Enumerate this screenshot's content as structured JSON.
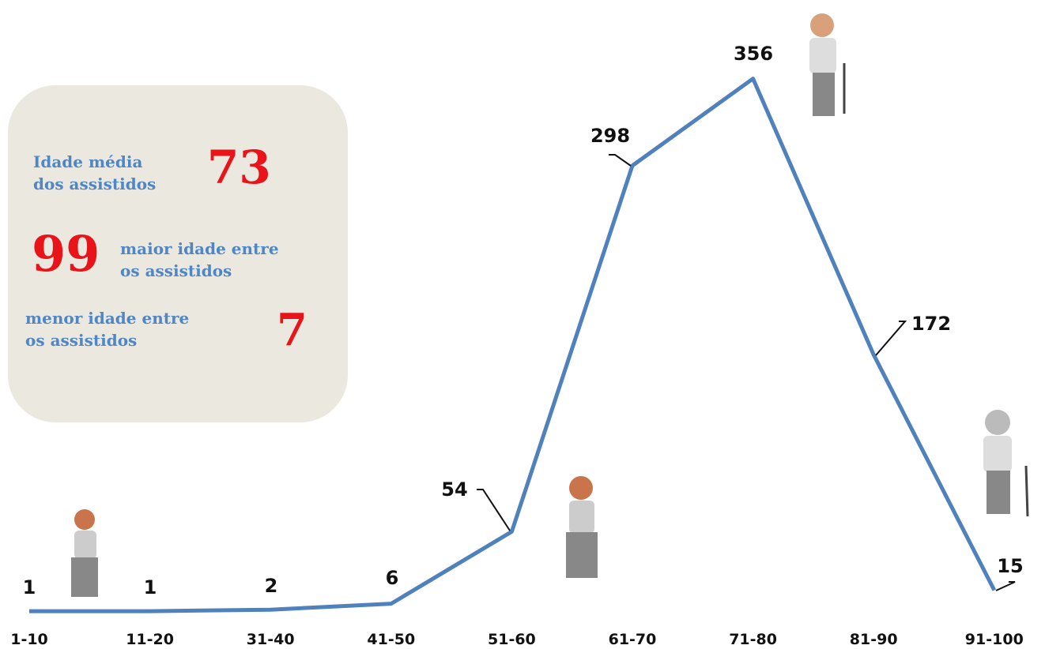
{
  "chart_data": {
    "type": "line",
    "categories": [
      "1-10",
      "11-20",
      "31-40",
      "41-50",
      "51-60",
      "61-70",
      "71-80",
      "81-90",
      "91-100"
    ],
    "values": [
      1,
      1,
      2,
      6,
      54,
      298,
      356,
      172,
      15
    ],
    "color": "#4f81bd",
    "annotations": [
      {
        "label_lines": [
          "Idade média",
          "dos assistidos"
        ],
        "value": 73
      },
      {
        "label_lines": [
          "maior   idade entre",
          "os assistidos"
        ],
        "value": 99
      },
      {
        "label_lines": [
          "menor   idade entre",
          "os assistidos"
        ],
        "value": 7
      }
    ]
  }
}
